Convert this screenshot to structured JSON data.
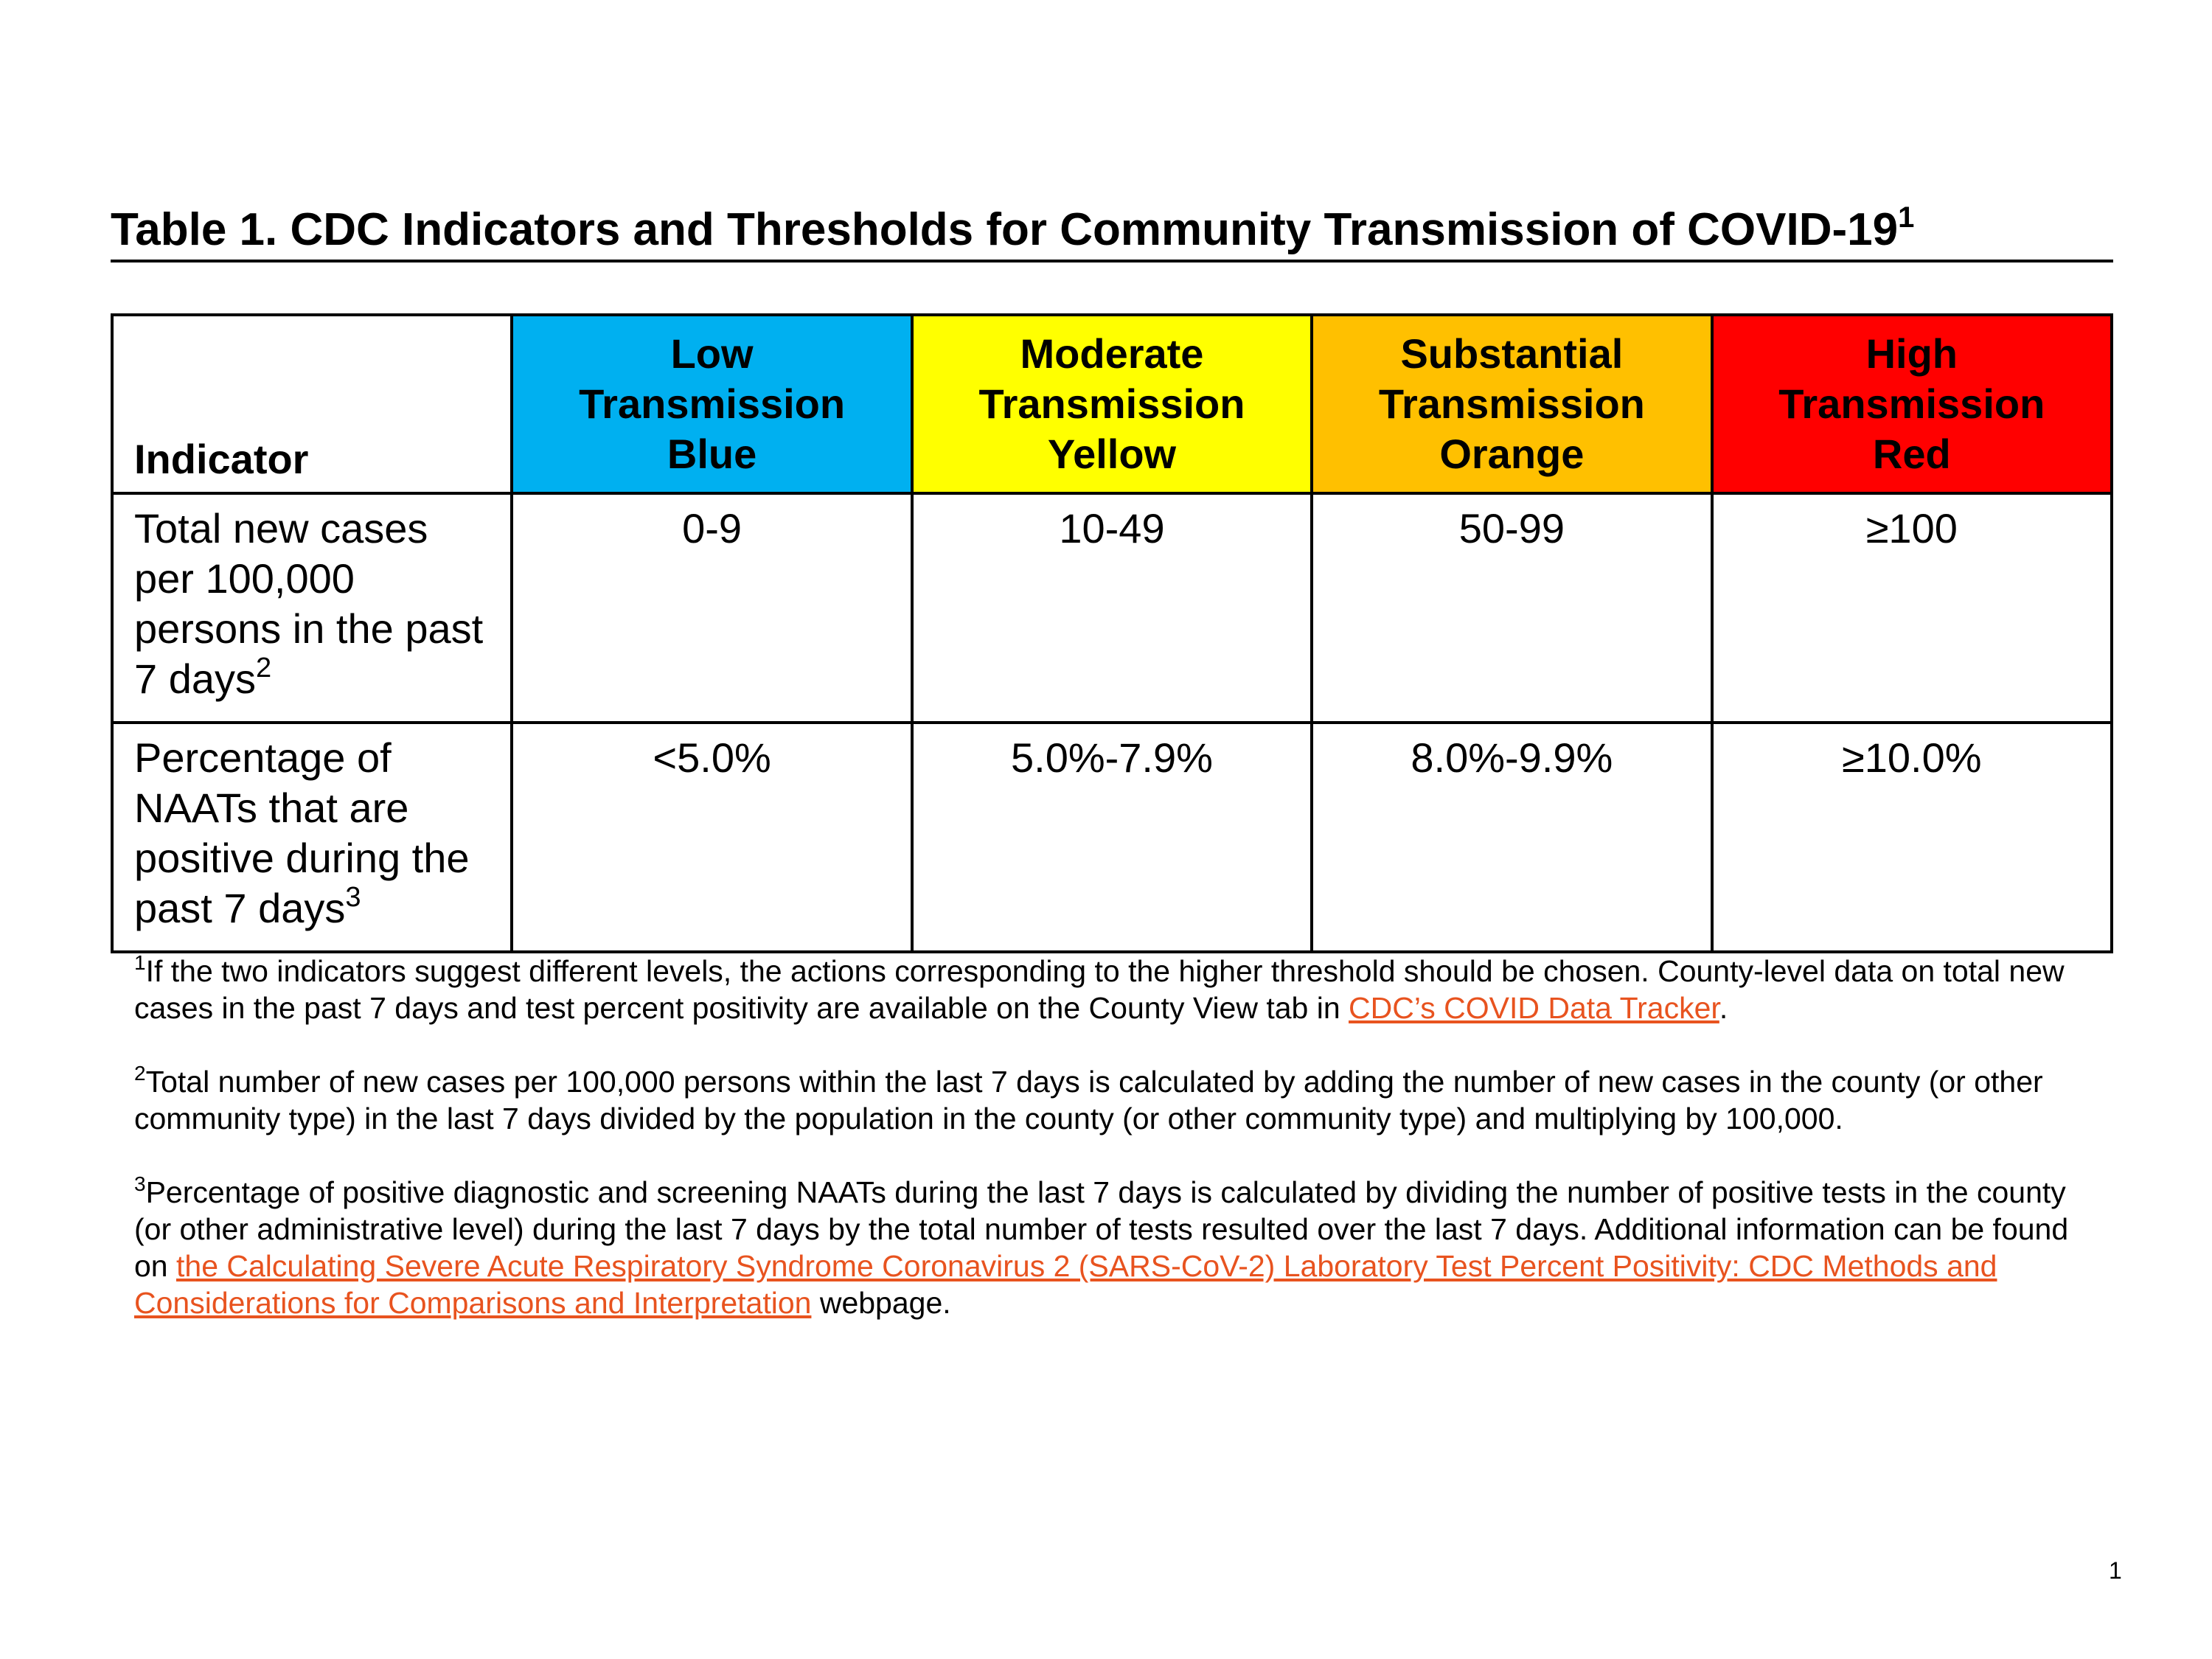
{
  "title": {
    "text": "Table 1. CDC Indicators and Thresholds for Community Transmission of COVID-19",
    "footnote_marker": "1"
  },
  "table": {
    "indicator_header": "Indicator",
    "levels": [
      {
        "line1": "Low",
        "line2": "Transmission",
        "line3": "Blue",
        "color": "#00b0f0"
      },
      {
        "line1": "Moderate",
        "line2": "Transmission",
        "line3": "Yellow",
        "color": "#ffff00"
      },
      {
        "line1": "Substantial",
        "line2": "Transmission",
        "line3": "Orange",
        "color": "#ffc000"
      },
      {
        "line1": "High",
        "line2": "Transmission",
        "line3": "Red",
        "color": "#ff0000"
      }
    ],
    "rows": [
      {
        "indicator": "Total new cases per 100,000 persons in the past 7 days",
        "footnote_marker": "2",
        "values": [
          "0-9",
          "10-49",
          "50-99",
          "≥100"
        ]
      },
      {
        "indicator": "Percentage of NAATs that are positive during the past 7 days",
        "footnote_marker": "3",
        "values": [
          "<5.0%",
          "5.0%-7.9%",
          "8.0%-9.9%",
          "≥10.0%"
        ]
      }
    ]
  },
  "footnotes": [
    {
      "marker": "1",
      "text_before": "If the two indicators suggest different levels, the actions corresponding to the higher threshold should be chosen. County-level data on total new cases in the past 7 days and test percent positivity are available on the County View tab in ",
      "link_text": "CDC’s COVID Data Tracker",
      "text_after": "."
    },
    {
      "marker": "2",
      "text_before": "Total number of new cases per 100,000 persons within the last 7 days is calculated by adding the number of new cases in the county (or other community type) in the last 7 days divided by the population in the county (or other community type) and multiplying by 100,000.",
      "link_text": "",
      "text_after": ""
    },
    {
      "marker": "3",
      "text_before": "Percentage of positive diagnostic and screening NAATs during the last 7 days is calculated by dividing the number of positive tests in the county (or other administrative level) during the last 7 days by the total number of tests resulted over the last 7 days. Additional information can be found on ",
      "link_text": "the Calculating Severe Acute Respiratory Syndrome Coronavirus 2 (SARS-CoV-2) Laboratory Test Percent Positivity: CDC Methods and Considerations for Comparisons and Interpretation",
      "text_after": " webpage."
    }
  ],
  "link_color": "#e8531f",
  "page_number": "1"
}
